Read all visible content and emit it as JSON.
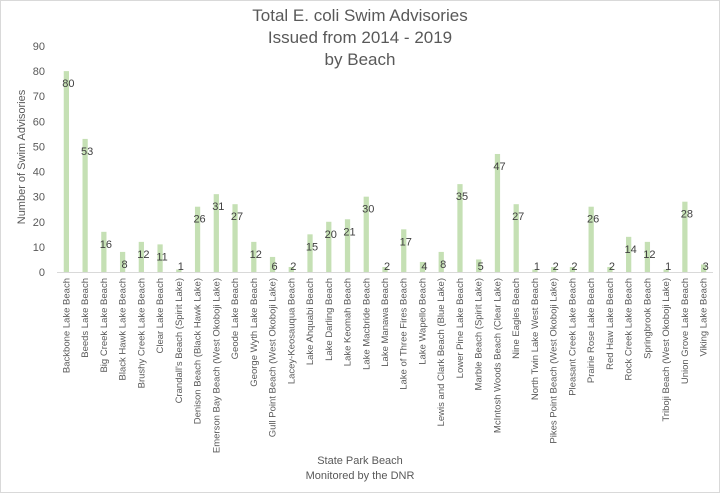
{
  "chart_data": {
    "type": "bar",
    "title_lines": [
      "Total E. coli Swim Advisories",
      "Issued from 2014 - 2019",
      "by Beach"
    ],
    "xlabel_lines": [
      "State Park Beach",
      "Monitored by the DNR"
    ],
    "ylabel": "Number of Swim Advisories",
    "ylim": [
      0,
      90
    ],
    "yticks": [
      "0",
      "10",
      "20",
      "30",
      "40",
      "50",
      "60",
      "70",
      "80",
      "90"
    ],
    "grid": false,
    "bar_color": "#c5e0b4",
    "categories": [
      "Backbone Lake Beach",
      "Beeds Lake Beach",
      "Big Creek Lake Beach",
      "Black Hawk Lake Beach",
      "Brushy Creek Lake Beach",
      "Clear Lake Beach",
      "Crandall's Beach (Spirit Lake)",
      "Denison Beach (Black Hawk Lake)",
      "Emerson Bay Beach (West Okoboji Lake)",
      "Geode Lake Beach",
      "George Wyth Lake Beach",
      "Gull Point Beach (West Okoboji Lake)",
      "Lacey-Keosauqua Beach",
      "Lake Ahquabi Beach",
      "Lake Darling Beach",
      "Lake Keomah Beach",
      "Lake Macbride Beach",
      "Lake Manawa Beach",
      "Lake of Three Fires Beach",
      "Lake Wapello Beach",
      "Lewis and Clark Beach (Blue Lake)",
      "Lower Pine Lake Beach",
      "Marble Beach (Spirit Lake)",
      "McIntosh Woods Beach (Clear Lake)",
      "Nine Eagles Beach",
      "North Twin Lake West Beach",
      "Pikes Point Beach (West Okoboji Lake)",
      "Pleasant Creek Lake Beach",
      "Prairie Rose Lake Beach",
      "Red Haw Lake Beach",
      "Rock Creek Lake Beach",
      "Springbrook Beach",
      "Triboji Beach (West Okoboji Lake)",
      "Union Grove Lake Beach",
      "Viking Lake Beach"
    ],
    "values": [
      80,
      53,
      16,
      8,
      12,
      11,
      1,
      26,
      31,
      27,
      12,
      6,
      2,
      15,
      20,
      21,
      30,
      2,
      17,
      4,
      8,
      35,
      5,
      47,
      27,
      1,
      2,
      2,
      26,
      2,
      14,
      12,
      1,
      28,
      3
    ],
    "data_labels": [
      "80",
      "53",
      "16",
      "8",
      "12",
      "11",
      "1",
      "26",
      "31",
      "27",
      "12",
      "6",
      "2",
      "15",
      "20",
      "21",
      "30",
      "2",
      "17",
      "4",
      "8",
      "35",
      "5",
      "47",
      "27",
      "1",
      "2",
      "2",
      "26",
      "2",
      "14",
      "12",
      "1",
      "28",
      "3"
    ]
  }
}
